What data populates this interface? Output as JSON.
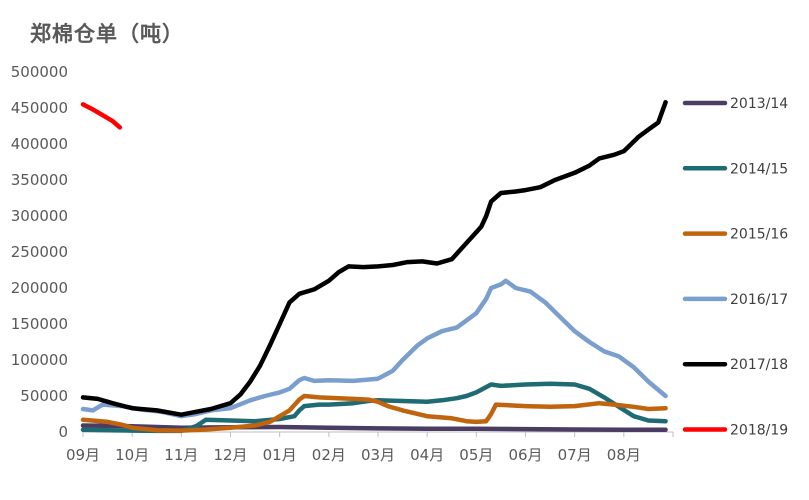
{
  "chart_data": {
    "type": "line",
    "title": "郑棉仓单（吨）",
    "xlabel": "",
    "ylabel": "",
    "ylim": [
      0,
      500000
    ],
    "yticks": [
      0,
      50000,
      100000,
      150000,
      200000,
      250000,
      300000,
      350000,
      400000,
      450000,
      500000
    ],
    "categories": [
      "09月",
      "10月",
      "11月",
      "12月",
      "01月",
      "02月",
      "03月",
      "04月",
      "05月",
      "06月",
      "07月",
      "08月"
    ],
    "x_range": [
      0,
      12
    ],
    "grid": false,
    "legend_position": "right",
    "series": [
      {
        "name": "2013/14",
        "color": "#4a3c63",
        "points": [
          [
            0,
            9000
          ],
          [
            1.0,
            8000
          ],
          [
            2.0,
            6000
          ],
          [
            3.0,
            6500
          ],
          [
            4.0,
            7000
          ],
          [
            5.0,
            6000
          ],
          [
            6.0,
            5000
          ],
          [
            7.0,
            4500
          ],
          [
            8.0,
            4500
          ],
          [
            9.0,
            4000
          ],
          [
            10.0,
            3500
          ],
          [
            11.0,
            3000
          ],
          [
            11.85,
            3000
          ]
        ]
      },
      {
        "name": "2014/15",
        "color": "#1f6b74",
        "points": [
          [
            0,
            3000
          ],
          [
            0.5,
            2500
          ],
          [
            1.0,
            2000
          ],
          [
            1.5,
            1500
          ],
          [
            2.0,
            1500
          ],
          [
            2.3,
            8000
          ],
          [
            2.5,
            17000
          ],
          [
            3.0,
            16000
          ],
          [
            3.5,
            15000
          ],
          [
            4.0,
            18000
          ],
          [
            4.3,
            22000
          ],
          [
            4.4,
            30000
          ],
          [
            4.5,
            36000
          ],
          [
            4.8,
            38000
          ],
          [
            5.0,
            38000
          ],
          [
            5.5,
            40000
          ],
          [
            5.8,
            43000
          ],
          [
            6.0,
            44000
          ],
          [
            6.5,
            43000
          ],
          [
            7.0,
            42000
          ],
          [
            7.3,
            44000
          ],
          [
            7.6,
            47000
          ],
          [
            7.8,
            50000
          ],
          [
            8.0,
            55000
          ],
          [
            8.3,
            66000
          ],
          [
            8.5,
            64000
          ],
          [
            9.0,
            66000
          ],
          [
            9.5,
            67000
          ],
          [
            10.0,
            66000
          ],
          [
            10.3,
            60000
          ],
          [
            10.6,
            48000
          ],
          [
            10.9,
            35000
          ],
          [
            11.2,
            22000
          ],
          [
            11.5,
            16000
          ],
          [
            11.85,
            15000
          ]
        ]
      },
      {
        "name": "2015/16",
        "color": "#c0640d",
        "points": [
          [
            0,
            17000
          ],
          [
            0.5,
            14000
          ],
          [
            0.8,
            10000
          ],
          [
            1.0,
            6000
          ],
          [
            1.5,
            2500
          ],
          [
            2.0,
            2000
          ],
          [
            2.5,
            3500
          ],
          [
            3.0,
            6000
          ],
          [
            3.5,
            9000
          ],
          [
            3.8,
            14000
          ],
          [
            4.0,
            22000
          ],
          [
            4.2,
            30000
          ],
          [
            4.4,
            45000
          ],
          [
            4.5,
            50000
          ],
          [
            4.8,
            48000
          ],
          [
            5.2,
            47000
          ],
          [
            5.5,
            46000
          ],
          [
            5.8,
            45000
          ],
          [
            6.0,
            42000
          ],
          [
            6.2,
            36000
          ],
          [
            6.5,
            30000
          ],
          [
            7.0,
            22000
          ],
          [
            7.5,
            19000
          ],
          [
            7.8,
            15000
          ],
          [
            8.0,
            14000
          ],
          [
            8.2,
            15000
          ],
          [
            8.3,
            25000
          ],
          [
            8.4,
            38000
          ],
          [
            9.0,
            36000
          ],
          [
            9.5,
            35000
          ],
          [
            10.0,
            36000
          ],
          [
            10.5,
            40000
          ],
          [
            10.8,
            38000
          ],
          [
            11.2,
            35000
          ],
          [
            11.5,
            32000
          ],
          [
            11.85,
            33000
          ]
        ]
      },
      {
        "name": "2016/17",
        "color": "#7a9fce",
        "points": [
          [
            0,
            32000
          ],
          [
            0.2,
            30000
          ],
          [
            0.4,
            38000
          ],
          [
            0.8,
            36000
          ],
          [
            1.2,
            31000
          ],
          [
            1.6,
            28000
          ],
          [
            2.0,
            22000
          ],
          [
            2.3,
            25000
          ],
          [
            2.6,
            30000
          ],
          [
            3.0,
            33000
          ],
          [
            3.4,
            44000
          ],
          [
            3.7,
            50000
          ],
          [
            4.0,
            55000
          ],
          [
            4.2,
            60000
          ],
          [
            4.4,
            72000
          ],
          [
            4.5,
            75000
          ],
          [
            4.7,
            71000
          ],
          [
            5.0,
            72000
          ],
          [
            5.5,
            71000
          ],
          [
            6.0,
            74000
          ],
          [
            6.3,
            85000
          ],
          [
            6.5,
            100000
          ],
          [
            6.8,
            120000
          ],
          [
            7.0,
            130000
          ],
          [
            7.3,
            140000
          ],
          [
            7.6,
            145000
          ],
          [
            7.8,
            155000
          ],
          [
            8.0,
            165000
          ],
          [
            8.2,
            185000
          ],
          [
            8.3,
            200000
          ],
          [
            8.5,
            205000
          ],
          [
            8.6,
            210000
          ],
          [
            8.8,
            200000
          ],
          [
            9.1,
            195000
          ],
          [
            9.4,
            180000
          ],
          [
            9.7,
            160000
          ],
          [
            10.0,
            140000
          ],
          [
            10.3,
            125000
          ],
          [
            10.6,
            112000
          ],
          [
            10.9,
            105000
          ],
          [
            11.2,
            90000
          ],
          [
            11.5,
            70000
          ],
          [
            11.85,
            50000
          ]
        ]
      },
      {
        "name": "2017/18",
        "color": "#000000",
        "points": [
          [
            0,
            48000
          ],
          [
            0.3,
            46000
          ],
          [
            0.6,
            40000
          ],
          [
            1.0,
            33000
          ],
          [
            1.5,
            30000
          ],
          [
            2.0,
            24000
          ],
          [
            2.3,
            28000
          ],
          [
            2.6,
            32000
          ],
          [
            3.0,
            40000
          ],
          [
            3.2,
            52000
          ],
          [
            3.4,
            70000
          ],
          [
            3.6,
            92000
          ],
          [
            3.8,
            120000
          ],
          [
            4.0,
            150000
          ],
          [
            4.2,
            180000
          ],
          [
            4.4,
            192000
          ],
          [
            4.7,
            198000
          ],
          [
            5.0,
            210000
          ],
          [
            5.2,
            222000
          ],
          [
            5.4,
            230000
          ],
          [
            5.7,
            229000
          ],
          [
            6.0,
            230000
          ],
          [
            6.3,
            232000
          ],
          [
            6.6,
            236000
          ],
          [
            6.9,
            237000
          ],
          [
            7.2,
            234000
          ],
          [
            7.5,
            240000
          ],
          [
            7.7,
            255000
          ],
          [
            7.9,
            270000
          ],
          [
            8.1,
            285000
          ],
          [
            8.2,
            300000
          ],
          [
            8.3,
            320000
          ],
          [
            8.5,
            332000
          ],
          [
            8.8,
            334000
          ],
          [
            9.0,
            336000
          ],
          [
            9.3,
            340000
          ],
          [
            9.6,
            350000
          ],
          [
            10.0,
            360000
          ],
          [
            10.3,
            370000
          ],
          [
            10.5,
            380000
          ],
          [
            10.8,
            385000
          ],
          [
            11.0,
            390000
          ],
          [
            11.3,
            410000
          ],
          [
            11.5,
            420000
          ],
          [
            11.7,
            430000
          ],
          [
            11.85,
            458000
          ]
        ]
      },
      {
        "name": "2018/19",
        "color": "#ff0000",
        "points": [
          [
            0,
            455000
          ],
          [
            0.2,
            448000
          ],
          [
            0.4,
            440000
          ],
          [
            0.6,
            432000
          ],
          [
            0.75,
            423000
          ]
        ]
      }
    ]
  }
}
